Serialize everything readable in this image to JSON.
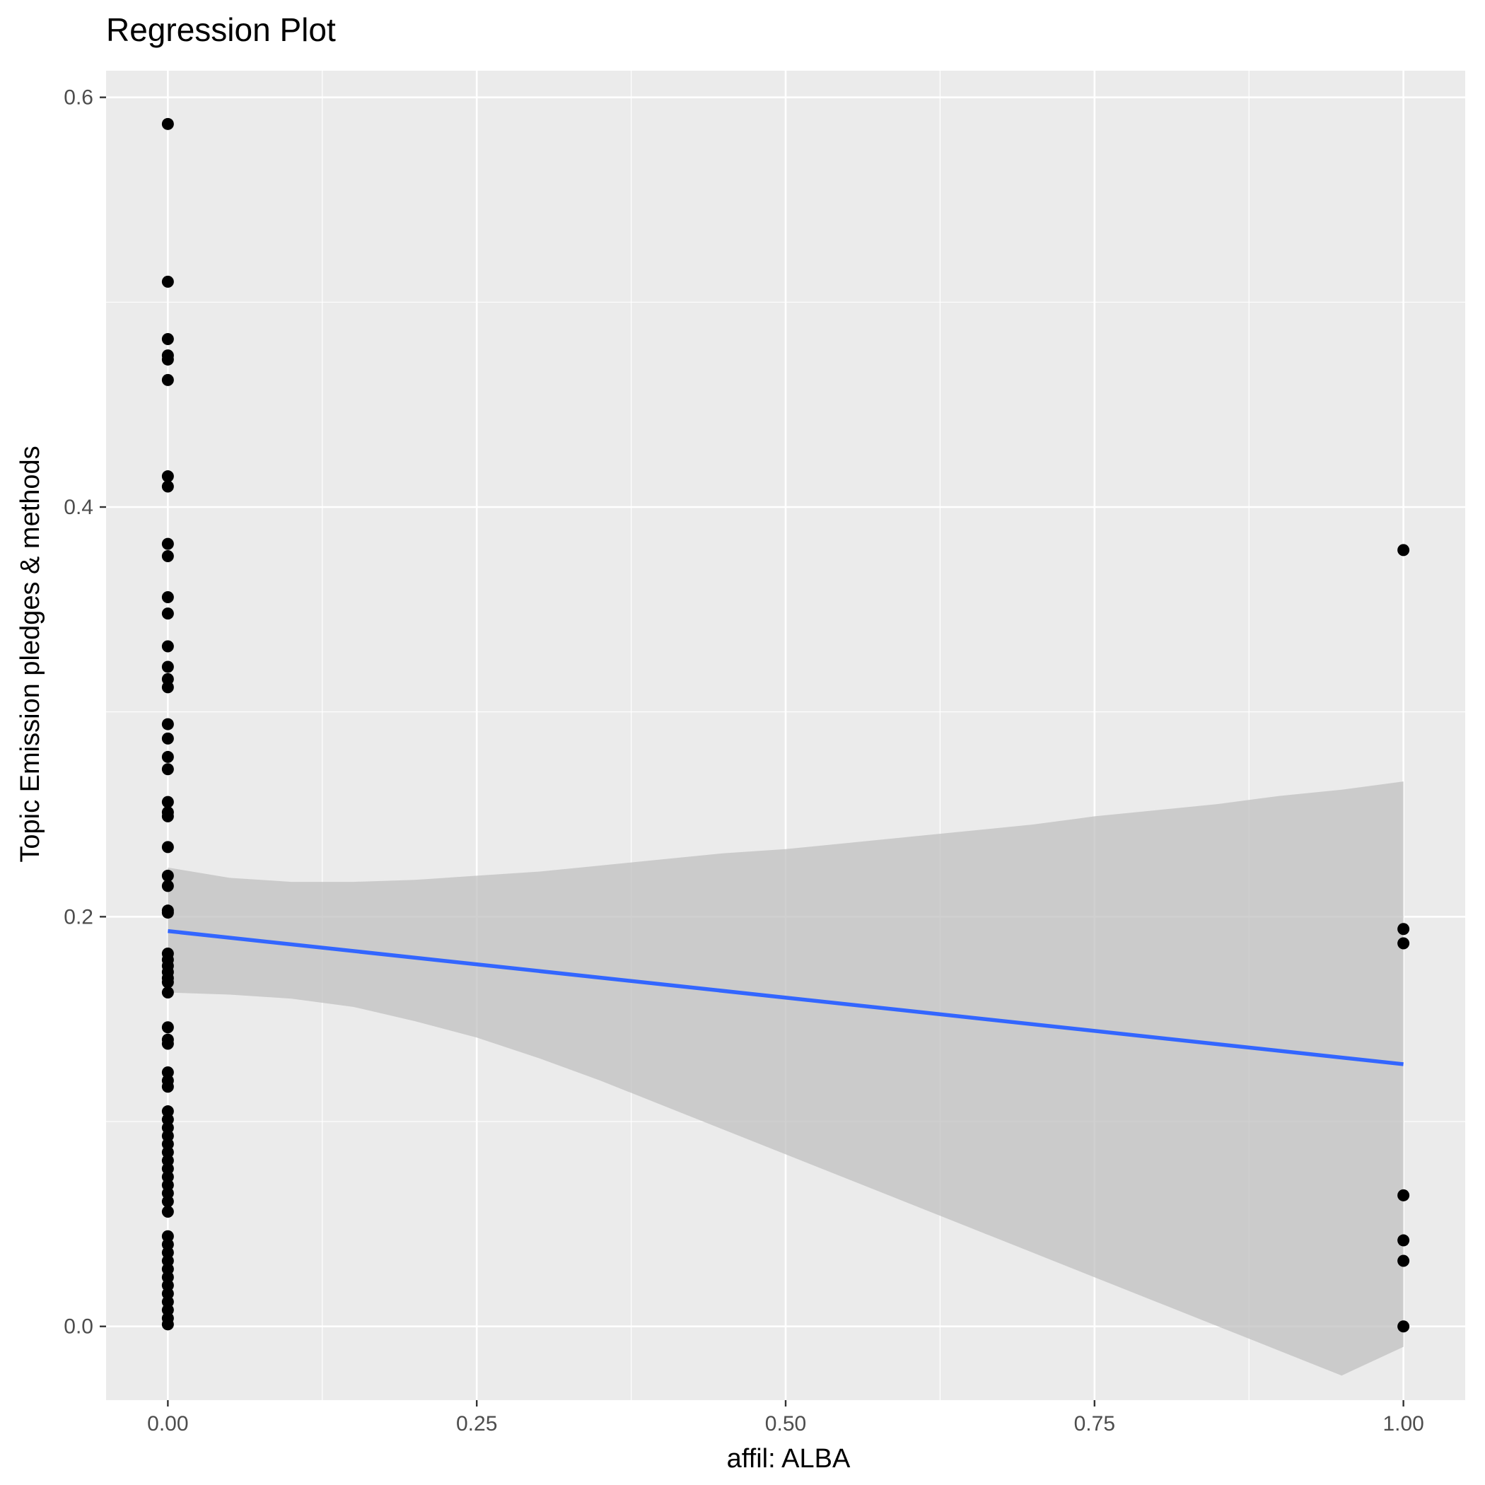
{
  "chart_data": {
    "type": "scatter",
    "title": "Regression Plot",
    "xlabel": "affil: ALBA",
    "ylabel": "Topic Emission pledges & methods",
    "xlim": [
      -0.05,
      1.05
    ],
    "ylim": [
      -0.036,
      0.613
    ],
    "xticks": [
      0,
      0.25,
      0.5,
      0.75,
      1
    ],
    "xtick_labels": [
      "0.00",
      "0.25",
      "0.50",
      "0.75",
      "1.00"
    ],
    "yticks": [
      0,
      0.2,
      0.4,
      0.6
    ],
    "ytick_labels": [
      "0.0",
      "0.2",
      "0.4",
      "0.6"
    ],
    "grid": true,
    "legend": "none",
    "colors": {
      "panel": "#ebebeb",
      "grid": "#ffffff",
      "points": "#000000",
      "fit_line": "#3366ff",
      "ribbon": "#c0c0c0",
      "tick_label": "#4d4d4d",
      "tick_mark": "#333333"
    },
    "points": [
      {
        "x": 0,
        "y": 0.587
      },
      {
        "x": 0,
        "y": 0.51
      },
      {
        "x": 0,
        "y": 0.482
      },
      {
        "x": 0,
        "y": 0.474
      },
      {
        "x": 0,
        "y": 0.472
      },
      {
        "x": 0,
        "y": 0.462
      },
      {
        "x": 0,
        "y": 0.415
      },
      {
        "x": 0,
        "y": 0.41
      },
      {
        "x": 0,
        "y": 0.382
      },
      {
        "x": 0,
        "y": 0.376
      },
      {
        "x": 0,
        "y": 0.356
      },
      {
        "x": 0,
        "y": 0.348
      },
      {
        "x": 0,
        "y": 0.332
      },
      {
        "x": 0,
        "y": 0.322
      },
      {
        "x": 0,
        "y": 0.316
      },
      {
        "x": 0,
        "y": 0.312
      },
      {
        "x": 0,
        "y": 0.294
      },
      {
        "x": 0,
        "y": 0.287
      },
      {
        "x": 0,
        "y": 0.278
      },
      {
        "x": 0,
        "y": 0.272
      },
      {
        "x": 0,
        "y": 0.256
      },
      {
        "x": 0,
        "y": 0.251
      },
      {
        "x": 0,
        "y": 0.249
      },
      {
        "x": 0,
        "y": 0.234
      },
      {
        "x": 0,
        "y": 0.22
      },
      {
        "x": 0,
        "y": 0.215
      },
      {
        "x": 0,
        "y": 0.203
      },
      {
        "x": 0,
        "y": 0.202
      },
      {
        "x": 0,
        "y": 0.182
      },
      {
        "x": 0,
        "y": 0.179
      },
      {
        "x": 0,
        "y": 0.176
      },
      {
        "x": 0,
        "y": 0.173
      },
      {
        "x": 0,
        "y": 0.17
      },
      {
        "x": 0,
        "y": 0.168
      },
      {
        "x": 0,
        "y": 0.163
      },
      {
        "x": 0,
        "y": 0.146
      },
      {
        "x": 0,
        "y": 0.14
      },
      {
        "x": 0,
        "y": 0.138
      },
      {
        "x": 0,
        "y": 0.124
      },
      {
        "x": 0,
        "y": 0.12
      },
      {
        "x": 0,
        "y": 0.117
      },
      {
        "x": 0,
        "y": 0.105
      },
      {
        "x": 0,
        "y": 0.101
      },
      {
        "x": 0,
        "y": 0.097
      },
      {
        "x": 0,
        "y": 0.093
      },
      {
        "x": 0,
        "y": 0.089
      },
      {
        "x": 0,
        "y": 0.085
      },
      {
        "x": 0,
        "y": 0.081
      },
      {
        "x": 0,
        "y": 0.077
      },
      {
        "x": 0,
        "y": 0.073
      },
      {
        "x": 0,
        "y": 0.069
      },
      {
        "x": 0,
        "y": 0.065
      },
      {
        "x": 0,
        "y": 0.061
      },
      {
        "x": 0,
        "y": 0.056
      },
      {
        "x": 0,
        "y": 0.044
      },
      {
        "x": 0,
        "y": 0.04
      },
      {
        "x": 0,
        "y": 0.036
      },
      {
        "x": 0,
        "y": 0.032
      },
      {
        "x": 0,
        "y": 0.028
      },
      {
        "x": 0,
        "y": 0.024
      },
      {
        "x": 0,
        "y": 0.02
      },
      {
        "x": 0,
        "y": 0.016
      },
      {
        "x": 0,
        "y": 0.012
      },
      {
        "x": 0,
        "y": 0.008
      },
      {
        "x": 0,
        "y": 0.004
      },
      {
        "x": 0,
        "y": 0.001
      },
      {
        "x": 1,
        "y": 0.379
      },
      {
        "x": 1,
        "y": 0.194
      },
      {
        "x": 1,
        "y": 0.187
      },
      {
        "x": 1,
        "y": 0.064
      },
      {
        "x": 1,
        "y": 0.042
      },
      {
        "x": 1,
        "y": 0.032
      },
      {
        "x": 1,
        "y": 0.0
      }
    ],
    "fit": {
      "x": [
        0,
        1
      ],
      "y": [
        0.193,
        0.128
      ]
    },
    "ribbon": [
      {
        "x": 0,
        "lo": 0.163,
        "hi": 0.224
      },
      {
        "x": 0.05,
        "lo": 0.162,
        "hi": 0.219
      },
      {
        "x": 0.1,
        "lo": 0.16,
        "hi": 0.217
      },
      {
        "x": 0.15,
        "lo": 0.156,
        "hi": 0.217
      },
      {
        "x": 0.2,
        "lo": 0.149,
        "hi": 0.218
      },
      {
        "x": 0.25,
        "lo": 0.141,
        "hi": 0.22
      },
      {
        "x": 0.3,
        "lo": 0.131,
        "hi": 0.222
      },
      {
        "x": 0.35,
        "lo": 0.12,
        "hi": 0.225
      },
      {
        "x": 0.4,
        "lo": 0.108,
        "hi": 0.228
      },
      {
        "x": 0.45,
        "lo": 0.096,
        "hi": 0.231
      },
      {
        "x": 0.5,
        "lo": 0.084,
        "hi": 0.233
      },
      {
        "x": 0.55,
        "lo": 0.072,
        "hi": 0.236
      },
      {
        "x": 0.6,
        "lo": 0.06,
        "hi": 0.239
      },
      {
        "x": 0.65,
        "lo": 0.048,
        "hi": 0.242
      },
      {
        "x": 0.7,
        "lo": 0.036,
        "hi": 0.245
      },
      {
        "x": 0.75,
        "lo": 0.024,
        "hi": 0.249
      },
      {
        "x": 0.8,
        "lo": 0.012,
        "hi": 0.252
      },
      {
        "x": 0.85,
        "lo": 0.0,
        "hi": 0.255
      },
      {
        "x": 0.9,
        "lo": -0.012,
        "hi": 0.259
      },
      {
        "x": 0.95,
        "lo": -0.024,
        "hi": 0.262
      },
      {
        "x": 1.0,
        "lo": -0.01,
        "hi": 0.266
      }
    ]
  }
}
